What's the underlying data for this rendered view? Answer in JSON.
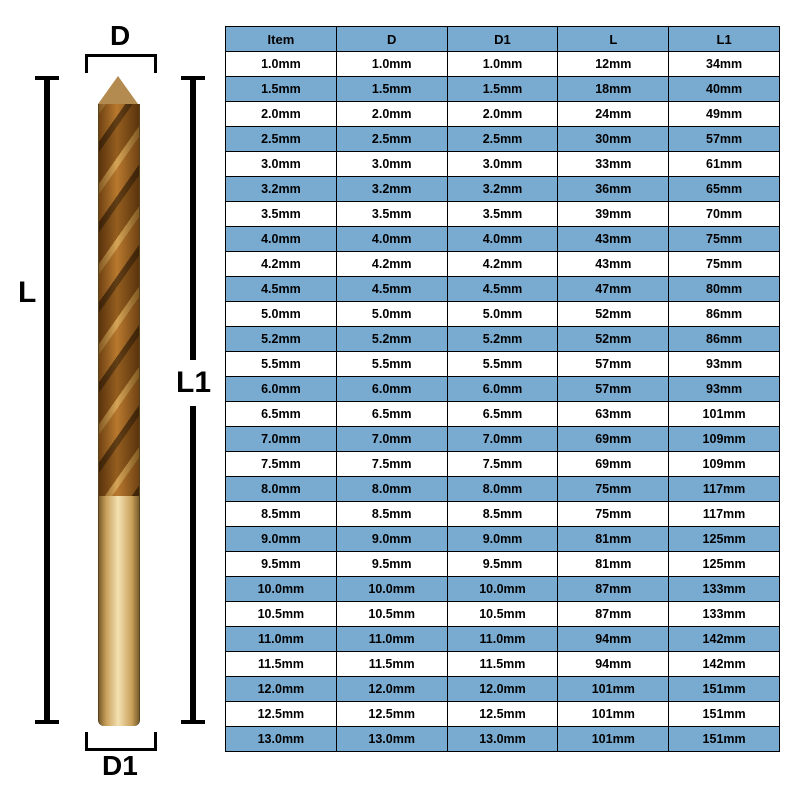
{
  "diagram": {
    "labels": {
      "D": "D",
      "D1": "D1",
      "L": "L",
      "L1": "L1"
    },
    "colors": {
      "label_color": "#000000",
      "bar_color": "#000000",
      "drill_dark": "#6e5228",
      "drill_mid": "#cfa05a",
      "drill_light": "#f0d9a8",
      "drill_edge": "#5a4420"
    }
  },
  "spec_table": {
    "type": "table",
    "header_bg": "#79abd1",
    "row_alt_bg": "#79abd1",
    "row_bg": "#ffffff",
    "border_color": "#000000",
    "font_size_pt": 9,
    "col_widths_pct": [
      20,
      20,
      20,
      20,
      20
    ],
    "columns": [
      "Item",
      "D",
      "D1",
      "L",
      "L1"
    ],
    "rows": [
      [
        "1.0mm",
        "1.0mm",
        "1.0mm",
        "12mm",
        "34mm"
      ],
      [
        "1.5mm",
        "1.5mm",
        "1.5mm",
        "18mm",
        "40mm"
      ],
      [
        "2.0mm",
        "2.0mm",
        "2.0mm",
        "24mm",
        "49mm"
      ],
      [
        "2.5mm",
        "2.5mm",
        "2.5mm",
        "30mm",
        "57mm"
      ],
      [
        "3.0mm",
        "3.0mm",
        "3.0mm",
        "33mm",
        "61mm"
      ],
      [
        "3.2mm",
        "3.2mm",
        "3.2mm",
        "36mm",
        "65mm"
      ],
      [
        "3.5mm",
        "3.5mm",
        "3.5mm",
        "39mm",
        "70mm"
      ],
      [
        "4.0mm",
        "4.0mm",
        "4.0mm",
        "43mm",
        "75mm"
      ],
      [
        "4.2mm",
        "4.2mm",
        "4.2mm",
        "43mm",
        "75mm"
      ],
      [
        "4.5mm",
        "4.5mm",
        "4.5mm",
        "47mm",
        "80mm"
      ],
      [
        "5.0mm",
        "5.0mm",
        "5.0mm",
        "52mm",
        "86mm"
      ],
      [
        "5.2mm",
        "5.2mm",
        "5.2mm",
        "52mm",
        "86mm"
      ],
      [
        "5.5mm",
        "5.5mm",
        "5.5mm",
        "57mm",
        "93mm"
      ],
      [
        "6.0mm",
        "6.0mm",
        "6.0mm",
        "57mm",
        "93mm"
      ],
      [
        "6.5mm",
        "6.5mm",
        "6.5mm",
        "63mm",
        "101mm"
      ],
      [
        "7.0mm",
        "7.0mm",
        "7.0mm",
        "69mm",
        "109mm"
      ],
      [
        "7.5mm",
        "7.5mm",
        "7.5mm",
        "69mm",
        "109mm"
      ],
      [
        "8.0mm",
        "8.0mm",
        "8.0mm",
        "75mm",
        "117mm"
      ],
      [
        "8.5mm",
        "8.5mm",
        "8.5mm",
        "75mm",
        "117mm"
      ],
      [
        "9.0mm",
        "9.0mm",
        "9.0mm",
        "81mm",
        "125mm"
      ],
      [
        "9.5mm",
        "9.5mm",
        "9.5mm",
        "81mm",
        "125mm"
      ],
      [
        "10.0mm",
        "10.0mm",
        "10.0mm",
        "87mm",
        "133mm"
      ],
      [
        "10.5mm",
        "10.5mm",
        "10.5mm",
        "87mm",
        "133mm"
      ],
      [
        "11.0mm",
        "11.0mm",
        "11.0mm",
        "94mm",
        "142mm"
      ],
      [
        "11.5mm",
        "11.5mm",
        "11.5mm",
        "94mm",
        "142mm"
      ],
      [
        "12.0mm",
        "12.0mm",
        "12.0mm",
        "101mm",
        "151mm"
      ],
      [
        "12.5mm",
        "12.5mm",
        "12.5mm",
        "101mm",
        "151mm"
      ],
      [
        "13.0mm",
        "13.0mm",
        "13.0mm",
        "101mm",
        "151mm"
      ]
    ]
  }
}
